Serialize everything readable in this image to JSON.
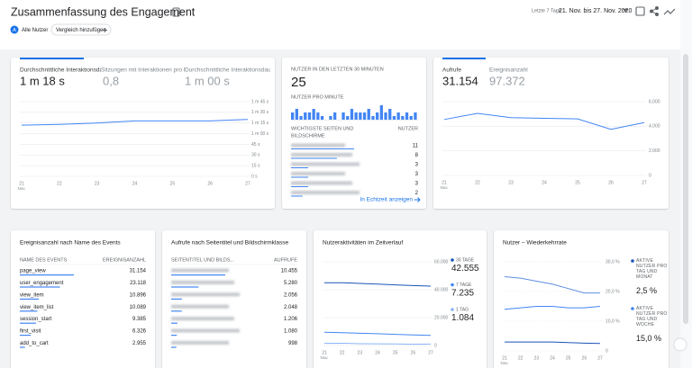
{
  "header": {
    "title": "Zusammenfassung des Engagement",
    "date_preset": "Letzte 7 Tage",
    "date_range": "21. Nov. bis 27. Nov. 2020",
    "segment_badge": "A",
    "segment": "Alle Nutzer",
    "compare": "Vergleich hinzufügen"
  },
  "engagement": {
    "metrics": [
      {
        "label": "Durchschnittliche Interaktionsdauer",
        "value": "1 m 18 s"
      },
      {
        "label": "Sitzungen mit Interaktionen pro Nutzer",
        "value": "0,8"
      },
      {
        "label": "Durchschnittliche Interaktionsdauer pro Sitzung",
        "value": "1 m 00 s"
      }
    ],
    "chart": {
      "type": "line",
      "categories": [
        "21",
        "22",
        "23",
        "24",
        "25",
        "26",
        "27"
      ],
      "x_month": "Nov.",
      "series": [
        {
          "color": "#4285f4",
          "values": [
            72,
            73,
            75,
            78,
            78,
            78,
            80
          ]
        }
      ],
      "ylim": [
        0,
        105
      ],
      "yticks": [
        {
          "value": 0,
          "label": "0 s"
        },
        {
          "value": 15,
          "label": "15 s"
        },
        {
          "value": 30,
          "label": "30 s"
        },
        {
          "value": 45,
          "label": "45 s"
        },
        {
          "value": 60,
          "label": "1 m 00 s"
        },
        {
          "value": 75,
          "label": "1 m 15 s"
        },
        {
          "value": 90,
          "label": "1 m 30 s"
        },
        {
          "value": 105,
          "label": "1 m 45 s"
        }
      ],
      "grid": true
    }
  },
  "realtime": {
    "title": "NUTZER IN DEN LETZTEN 30 MINUTEN",
    "value": "25",
    "per_minute_title": "NUTZER PRO MINUTE",
    "per_minute": {
      "type": "bar",
      "color": "#4285f4",
      "values": [
        2,
        3,
        1,
        2,
        2,
        3,
        2,
        1,
        0,
        1,
        2,
        0,
        2,
        1,
        3,
        2,
        2,
        2,
        3,
        1,
        2,
        4,
        2,
        3,
        1,
        2,
        1,
        2,
        1,
        2
      ]
    },
    "table_title": "WICHTIGSTE SEITEN UND",
    "table_title_2": "BILDSCHIRME",
    "table_value_header": "NUTZER",
    "rows": [
      11,
      8,
      3,
      3,
      3,
      2
    ],
    "link": "In Echtzeit anzeigen"
  },
  "views": {
    "metrics": [
      {
        "label": "Aufrufe",
        "value": "31.154"
      },
      {
        "label": "Ereignisanzahl",
        "value": "97.372"
      }
    ],
    "chart": {
      "type": "line",
      "categories": [
        "21",
        "22",
        "23",
        "24",
        "25",
        "26",
        "27"
      ],
      "x_month": "Nov.",
      "series": [
        {
          "color": "#4285f4",
          "values": [
            4550,
            5050,
            4700,
            4650,
            4600,
            3750,
            4300
          ]
        }
      ],
      "ylim": [
        0,
        6000
      ],
      "yticks": [
        0,
        {
          "value": 2000,
          "label": "2.000"
        },
        {
          "value": 4000,
          "label": "4.000"
        },
        {
          "value": 6000,
          "label": "6.000"
        }
      ],
      "grid": true
    }
  },
  "events": {
    "title": "Ereignisanzahl nach Name des Events",
    "headers": [
      "NAME DES EVENTS",
      "EREIGNISANZAHL"
    ],
    "names": [
      "page_view",
      "user_engagement",
      "view_item",
      "view_item_list",
      "session_start",
      "first_visit",
      "add_to_cart"
    ],
    "values": [
      31154,
      23118,
      10896,
      10089,
      9385,
      6326,
      2955
    ],
    "value_labels": [
      "31.154",
      "23.118",
      "10.896",
      "10.089",
      "9.385",
      "6.326",
      "2.955"
    ],
    "color": "#4285f4"
  },
  "pages": {
    "title": "Aufrufe nach Seitentitel und Bildschirmklasse",
    "headers": [
      "SEITENTITEL UND BILDS...",
      "AUFRUFE"
    ],
    "values": [
      10455,
      5280,
      2056,
      2048,
      1206,
      1080,
      998
    ],
    "value_labels": [
      "10.455",
      "5.280",
      "2.056",
      "2.048",
      "1.206",
      "1.080",
      "998"
    ],
    "color": "#4285f4"
  },
  "activity": {
    "title": "Nutzeraktivitäten im Zeitverlauf",
    "chart": {
      "type": "line",
      "categories": [
        "21",
        "22",
        "23",
        "24",
        "25",
        "26",
        "27"
      ],
      "x_month": "Nov.",
      "series": [
        {
          "name": "30 TAGE",
          "summary": "42.555",
          "color": "#1a54b8",
          "values": [
            45000,
            45000,
            44500,
            44000,
            43500,
            43000,
            42555
          ]
        },
        {
          "name": "7 TAGE",
          "summary": "7.235",
          "color": "#4285f4",
          "values": [
            9500,
            9200,
            8800,
            8500,
            8000,
            7600,
            7235
          ]
        },
        {
          "name": "1 TAG",
          "summary": "1.084",
          "color": "#8ab4f8",
          "values": [
            1500,
            1600,
            1300,
            1200,
            1100,
            900,
            1084
          ]
        }
      ],
      "ylim": [
        0,
        60000
      ],
      "yticks": [
        0,
        {
          "value": 20000,
          "label": "20.000"
        },
        {
          "value": 40000,
          "label": "40.000"
        },
        {
          "value": 60000,
          "label": "60.000"
        }
      ],
      "grid": true
    }
  },
  "retention": {
    "title": "Nutzer – Wiederkehrrate",
    "chart": {
      "type": "line",
      "categories": [
        "21",
        "22",
        "23",
        "24",
        "25",
        "26",
        "27"
      ],
      "x_month": "Nov.",
      "series": [
        {
          "name": "AKTIVE NUTZER PRO TAG UND MONAT",
          "summary": "2,5 %",
          "color": "#1a54b8",
          "values": [
            3,
            3,
            3,
            3,
            2.8,
            2.6,
            2.5
          ]
        },
        {
          "name": "AKTIVE NUTZER PRO TAG UND WOCHE",
          "summary": "15,0 %",
          "color": "#4285f4",
          "values": [
            14,
            14.5,
            15,
            15,
            14.5,
            14.5,
            15
          ]
        },
        {
          "color": "#5e8fe0",
          "values": [
            25,
            24.5,
            23.5,
            22.5,
            21,
            19.5,
            19.5
          ]
        }
      ],
      "ylim": [
        0,
        30
      ],
      "yticks": [
        0,
        {
          "value": 10,
          "label": "10,0 %"
        },
        {
          "value": 20,
          "label": "20,0 %"
        },
        {
          "value": 30,
          "label": "30,0 %"
        }
      ],
      "grid": true
    }
  }
}
